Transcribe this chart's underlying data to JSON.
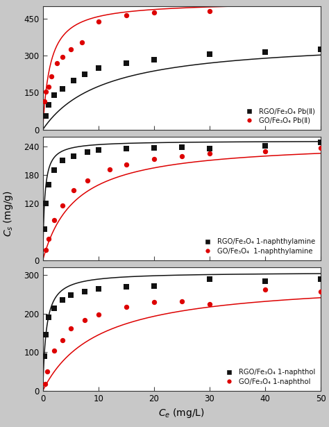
{
  "panel1": {
    "ylim": [
      0,
      500
    ],
    "yticks": [
      0,
      150,
      300,
      450
    ],
    "rgo_points": {
      "x": [
        0.5,
        1.0,
        2.0,
        3.5,
        5.5,
        7.5,
        10.0,
        15.0,
        20.0,
        30.0,
        40.0,
        50.0
      ],
      "y": [
        55,
        100,
        140,
        165,
        200,
        225,
        250,
        270,
        285,
        305,
        315,
        325
      ]
    },
    "go_points": {
      "x": [
        0.3,
        0.6,
        1.0,
        1.5,
        2.5,
        3.5,
        5.0,
        7.0,
        10.0,
        15.0,
        20.0,
        30.0
      ],
      "y": [
        115,
        155,
        175,
        215,
        270,
        295,
        325,
        355,
        440,
        465,
        475,
        480
      ]
    },
    "rgo_langmuir": {
      "qmax": 370,
      "kl": 0.09
    },
    "go_langmuir": {
      "qmax": 520,
      "kl": 0.75
    },
    "legend": [
      "RGO/Fe₃O₄ Pb(Ⅱ)",
      "GO/Fe₃O₄ Pb(Ⅱ)"
    ]
  },
  "panel2": {
    "ylim": [
      0,
      260
    ],
    "yticks": [
      0,
      120,
      180,
      240
    ],
    "rgo_points": {
      "x": [
        0.3,
        0.6,
        1.0,
        2.0,
        3.5,
        5.5,
        8.0,
        10.0,
        15.0,
        20.0,
        25.0,
        30.0,
        40.0,
        50.0
      ],
      "y": [
        65,
        120,
        160,
        190,
        210,
        220,
        228,
        233,
        236,
        237,
        238,
        236,
        242,
        248
      ]
    },
    "go_points": {
      "x": [
        0.5,
        1.0,
        2.0,
        3.5,
        5.5,
        8.0,
        12.0,
        15.0,
        20.0,
        25.0,
        30.0,
        40.0,
        50.0
      ],
      "y": [
        22,
        45,
        85,
        115,
        148,
        168,
        192,
        202,
        213,
        220,
        225,
        230,
        237
      ]
    },
    "rgo_langmuir": {
      "qmax": 252,
      "kl": 3.0
    },
    "go_langmuir": {
      "qmax": 252,
      "kl": 0.17
    },
    "legend": [
      "RGO/Fe₃O₄ 1-naphthylamine",
      "GO/Fe₃O₄  1-naphthylamine"
    ]
  },
  "panel3": {
    "ylim": [
      0,
      320
    ],
    "yticks": [
      0,
      100,
      200,
      300
    ],
    "rgo_points": {
      "x": [
        0.3,
        0.6,
        1.0,
        2.0,
        3.5,
        5.0,
        7.5,
        10.0,
        15.0,
        20.0,
        30.0,
        40.0,
        50.0
      ],
      "y": [
        90,
        145,
        190,
        215,
        235,
        248,
        258,
        265,
        270,
        272,
        290,
        285,
        290
      ]
    },
    "go_points": {
      "x": [
        0.4,
        0.8,
        2.0,
        3.5,
        5.0,
        7.5,
        10.0,
        15.0,
        20.0,
        25.0,
        30.0,
        40.0,
        50.0
      ],
      "y": [
        18,
        50,
        105,
        132,
        162,
        183,
        198,
        218,
        230,
        233,
        225,
        263,
        258
      ]
    },
    "rgo_langmuir": {
      "qmax": 308,
      "kl": 1.6
    },
    "go_langmuir": {
      "qmax": 290,
      "kl": 0.1
    },
    "legend": [
      "RGO/Fe₃O₄ 1-naphthol",
      "GO/Fe₃O₄ 1-naphthol"
    ]
  },
  "xlabel": "$C_{e}$ (mg/L)",
  "ylabel": "$C_{s}$ (mg/g)",
  "xlim": [
    0,
    50
  ],
  "xticks": [
    0,
    10,
    20,
    30,
    40,
    50
  ],
  "black_color": "#111111",
  "red_color": "#dd0000",
  "fig_bg": "#c8c8c8",
  "plot_bg": "#ffffff"
}
